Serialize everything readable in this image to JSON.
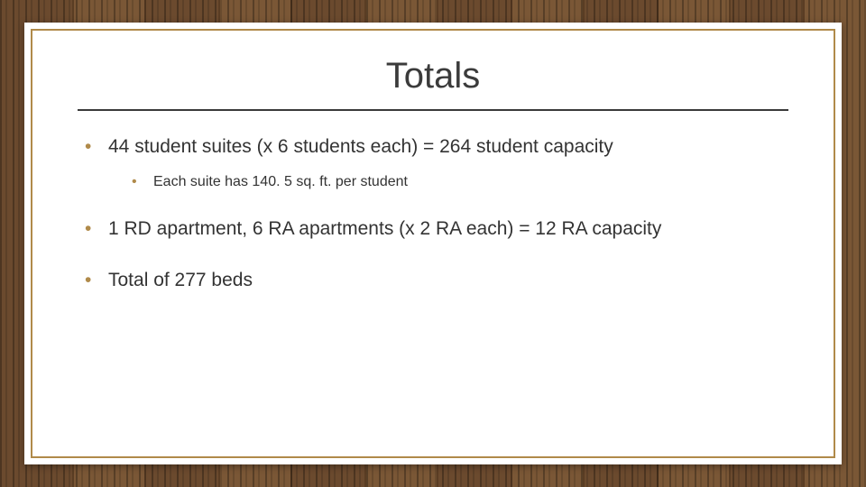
{
  "slide": {
    "title": "Totals",
    "bullets": [
      {
        "text": "44 student suites (x 6 students each) = 264 student capacity",
        "sub": [
          {
            "text": "Each suite has 140. 5 sq. ft. per student"
          }
        ]
      },
      {
        "text": "1 RD apartment, 6 RA apartments (x 2 RA each) = 12 RA capacity",
        "sub": []
      },
      {
        "text": "Total of 277 beds",
        "sub": []
      }
    ]
  },
  "style": {
    "accent_color": "#b08a4a",
    "title_color": "#3b3b3b",
    "body_color": "#333333",
    "divider_color": "#3a3a3a",
    "inner_border_color": "#b08a4a",
    "background_color": "#ffffff",
    "title_fontsize": 40,
    "body_fontsize": 21,
    "sub_fontsize": 16
  }
}
